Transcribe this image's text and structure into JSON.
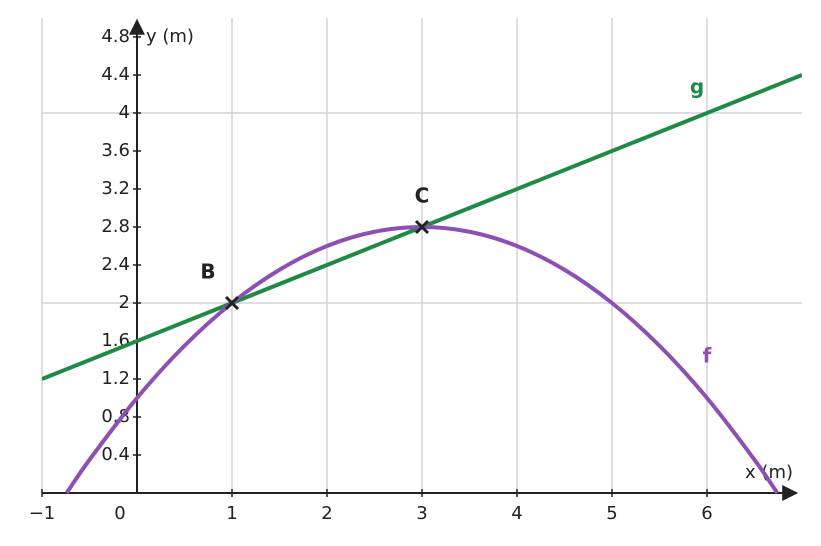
{
  "chart_data": {
    "type": "function-plot",
    "x_label": "x (m)",
    "y_label": "y (m)",
    "xlim": [
      -1,
      7
    ],
    "ylim": [
      0,
      5
    ],
    "xticks": [
      {
        "value": -1,
        "label": "−1"
      },
      0,
      1,
      2,
      3,
      4,
      5,
      6
    ],
    "yticks": [
      0.4,
      0.8,
      1.2,
      1.6,
      2,
      2.4,
      2.8,
      3.2,
      3.6,
      4,
      4.4,
      4.8
    ],
    "grid": true,
    "series": [
      {
        "name": "g",
        "color": "#1e8a44",
        "x": [
          -1,
          7
        ],
        "values": [
          1.2,
          4.4
        ]
      },
      {
        "name": "f",
        "color": "#8e4fb5",
        "x": [
          -0.74,
          -0.5,
          0,
          0.5,
          1,
          1.5,
          2,
          2.5,
          3,
          3.5,
          4,
          4.5,
          5,
          5.5,
          6,
          6.5,
          6.74
        ],
        "values": [
          0,
          0.35,
          1,
          1.55,
          2,
          2.35,
          2.6,
          2.75,
          2.8,
          2.75,
          2.6,
          2.35,
          2,
          1.55,
          1,
          0.35,
          0
        ]
      }
    ],
    "points": [
      {
        "label": "B",
        "x": 1,
        "y": 2
      },
      {
        "label": "C",
        "x": 3,
        "y": 2.8
      }
    ]
  }
}
